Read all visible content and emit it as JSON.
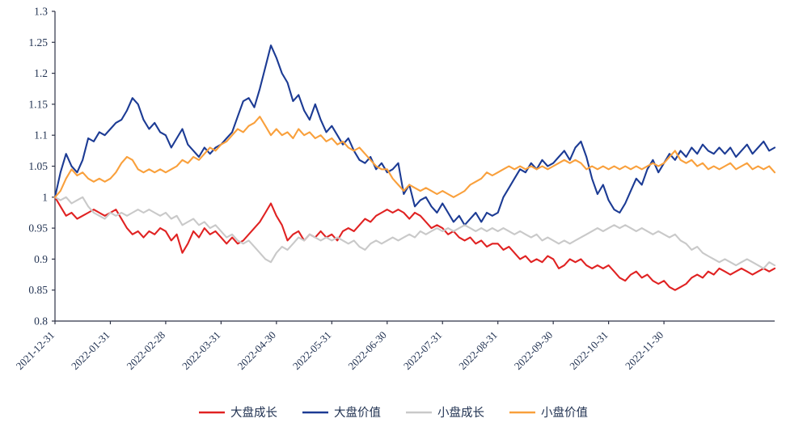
{
  "chart_data": {
    "type": "line",
    "title": "",
    "xlabel": "",
    "ylabel": "",
    "grid": false,
    "legend_position": "bottom",
    "y_min": 0.8,
    "y_max": 1.3,
    "y_tick_step": 0.05,
    "y_tick_labels": [
      "0.8",
      "0.85",
      "0.9",
      "0.95",
      "1",
      "1.05",
      "1.1",
      "1.15",
      "1.2",
      "1.25",
      "1.3"
    ],
    "x_tick_labels": [
      "2021-12-31",
      "2022-01-31",
      "2022-02-28",
      "2022-03-31",
      "2022-04-30",
      "2022-05-31",
      "2022-06-30",
      "2022-07-31",
      "2022-08-31",
      "2022-09-30",
      "2022-10-31",
      "2022-11-30"
    ],
    "points_per_month": 10,
    "axis_color": "#2e3347",
    "tick_text_color": "#1f3050",
    "legend_text_color": "#1f3050",
    "series": [
      {
        "name": "大盘成长",
        "color": "#e02222",
        "values": [
          1.0,
          0.985,
          0.97,
          0.975,
          0.965,
          0.97,
          0.975,
          0.98,
          0.975,
          0.97,
          0.975,
          0.98,
          0.965,
          0.95,
          0.94,
          0.945,
          0.935,
          0.945,
          0.94,
          0.95,
          0.945,
          0.93,
          0.94,
          0.91,
          0.925,
          0.945,
          0.935,
          0.95,
          0.94,
          0.945,
          0.935,
          0.925,
          0.935,
          0.925,
          0.93,
          0.94,
          0.95,
          0.96,
          0.975,
          0.99,
          0.97,
          0.955,
          0.93,
          0.94,
          0.945,
          0.93,
          0.94,
          0.935,
          0.945,
          0.935,
          0.94,
          0.93,
          0.945,
          0.95,
          0.945,
          0.955,
          0.965,
          0.96,
          0.97,
          0.975,
          0.98,
          0.975,
          0.98,
          0.975,
          0.965,
          0.975,
          0.97,
          0.96,
          0.95,
          0.955,
          0.95,
          0.94,
          0.945,
          0.935,
          0.93,
          0.935,
          0.925,
          0.93,
          0.92,
          0.925,
          0.925,
          0.915,
          0.92,
          0.91,
          0.9,
          0.905,
          0.895,
          0.9,
          0.895,
          0.905,
          0.9,
          0.885,
          0.89,
          0.9,
          0.895,
          0.9,
          0.89,
          0.885,
          0.89,
          0.885,
          0.89,
          0.88,
          0.87,
          0.865,
          0.875,
          0.88,
          0.87,
          0.875,
          0.865,
          0.86,
          0.865,
          0.855,
          0.85,
          0.855,
          0.86,
          0.87,
          0.875,
          0.87,
          0.88,
          0.875,
          0.885,
          0.88,
          0.875,
          0.88,
          0.885,
          0.88,
          0.875,
          0.88,
          0.885,
          0.88,
          0.885
        ]
      },
      {
        "name": "大盘价值",
        "color": "#1c3b94",
        "values": [
          1.0,
          1.04,
          1.07,
          1.05,
          1.04,
          1.06,
          1.095,
          1.09,
          1.105,
          1.1,
          1.11,
          1.12,
          1.125,
          1.14,
          1.16,
          1.15,
          1.125,
          1.11,
          1.12,
          1.105,
          1.1,
          1.08,
          1.095,
          1.11,
          1.085,
          1.075,
          1.065,
          1.08,
          1.07,
          1.08,
          1.085,
          1.095,
          1.105,
          1.13,
          1.155,
          1.16,
          1.145,
          1.175,
          1.21,
          1.245,
          1.225,
          1.2,
          1.185,
          1.155,
          1.165,
          1.14,
          1.125,
          1.15,
          1.125,
          1.105,
          1.115,
          1.1,
          1.085,
          1.095,
          1.075,
          1.06,
          1.055,
          1.065,
          1.045,
          1.055,
          1.04,
          1.045,
          1.055,
          1.005,
          1.02,
          0.985,
          0.995,
          1.0,
          0.985,
          0.975,
          0.99,
          0.975,
          0.96,
          0.97,
          0.955,
          0.965,
          0.975,
          0.96,
          0.975,
          0.97,
          0.975,
          1.0,
          1.015,
          1.03,
          1.045,
          1.04,
          1.055,
          1.045,
          1.06,
          1.05,
          1.055,
          1.065,
          1.075,
          1.06,
          1.08,
          1.09,
          1.065,
          1.03,
          1.005,
          1.02,
          0.995,
          0.98,
          0.975,
          0.99,
          1.01,
          1.03,
          1.02,
          1.045,
          1.06,
          1.04,
          1.055,
          1.07,
          1.06,
          1.075,
          1.065,
          1.08,
          1.07,
          1.085,
          1.075,
          1.07,
          1.08,
          1.07,
          1.08,
          1.065,
          1.075,
          1.085,
          1.07,
          1.08,
          1.09,
          1.075,
          1.08
        ]
      },
      {
        "name": "小盘成长",
        "color": "#c9c9c9",
        "values": [
          1.0,
          0.995,
          1.0,
          0.99,
          0.995,
          1.0,
          0.985,
          0.975,
          0.97,
          0.965,
          0.975,
          0.97,
          0.975,
          0.97,
          0.975,
          0.98,
          0.975,
          0.98,
          0.975,
          0.97,
          0.975,
          0.965,
          0.97,
          0.955,
          0.96,
          0.965,
          0.955,
          0.96,
          0.95,
          0.955,
          0.945,
          0.935,
          0.94,
          0.93,
          0.925,
          0.93,
          0.92,
          0.91,
          0.9,
          0.895,
          0.91,
          0.92,
          0.915,
          0.925,
          0.935,
          0.93,
          0.94,
          0.935,
          0.93,
          0.935,
          0.93,
          0.935,
          0.93,
          0.925,
          0.93,
          0.92,
          0.915,
          0.925,
          0.93,
          0.925,
          0.93,
          0.935,
          0.93,
          0.935,
          0.94,
          0.935,
          0.945,
          0.94,
          0.945,
          0.95,
          0.945,
          0.95,
          0.945,
          0.95,
          0.955,
          0.95,
          0.945,
          0.95,
          0.945,
          0.95,
          0.945,
          0.95,
          0.945,
          0.94,
          0.945,
          0.94,
          0.935,
          0.94,
          0.93,
          0.935,
          0.93,
          0.925,
          0.93,
          0.925,
          0.93,
          0.935,
          0.94,
          0.945,
          0.95,
          0.945,
          0.95,
          0.955,
          0.95,
          0.955,
          0.95,
          0.945,
          0.95,
          0.945,
          0.94,
          0.945,
          0.94,
          0.935,
          0.94,
          0.93,
          0.925,
          0.915,
          0.92,
          0.91,
          0.905,
          0.9,
          0.895,
          0.9,
          0.895,
          0.89,
          0.895,
          0.9,
          0.895,
          0.89,
          0.885,
          0.895,
          0.89
        ]
      },
      {
        "name": "小盘价值",
        "color": "#f9a03c",
        "values": [
          1.0,
          1.01,
          1.03,
          1.045,
          1.035,
          1.04,
          1.03,
          1.025,
          1.03,
          1.025,
          1.03,
          1.04,
          1.055,
          1.065,
          1.06,
          1.045,
          1.04,
          1.045,
          1.04,
          1.045,
          1.04,
          1.045,
          1.05,
          1.06,
          1.055,
          1.065,
          1.06,
          1.07,
          1.08,
          1.075,
          1.085,
          1.09,
          1.1,
          1.11,
          1.105,
          1.115,
          1.12,
          1.13,
          1.115,
          1.1,
          1.11,
          1.1,
          1.105,
          1.095,
          1.11,
          1.1,
          1.105,
          1.095,
          1.1,
          1.09,
          1.095,
          1.085,
          1.09,
          1.08,
          1.075,
          1.08,
          1.07,
          1.06,
          1.05,
          1.045,
          1.045,
          1.03,
          1.02,
          1.01,
          1.02,
          1.015,
          1.01,
          1.015,
          1.01,
          1.005,
          1.01,
          1.005,
          1.0,
          1.005,
          1.01,
          1.02,
          1.025,
          1.03,
          1.04,
          1.035,
          1.04,
          1.045,
          1.05,
          1.045,
          1.05,
          1.045,
          1.05,
          1.045,
          1.05,
          1.045,
          1.05,
          1.055,
          1.06,
          1.055,
          1.06,
          1.055,
          1.045,
          1.05,
          1.045,
          1.05,
          1.045,
          1.05,
          1.045,
          1.05,
          1.045,
          1.05,
          1.045,
          1.05,
          1.055,
          1.05,
          1.055,
          1.065,
          1.075,
          1.06,
          1.055,
          1.06,
          1.05,
          1.055,
          1.045,
          1.05,
          1.045,
          1.05,
          1.055,
          1.045,
          1.05,
          1.055,
          1.045,
          1.05,
          1.045,
          1.05,
          1.04
        ]
      }
    ]
  }
}
